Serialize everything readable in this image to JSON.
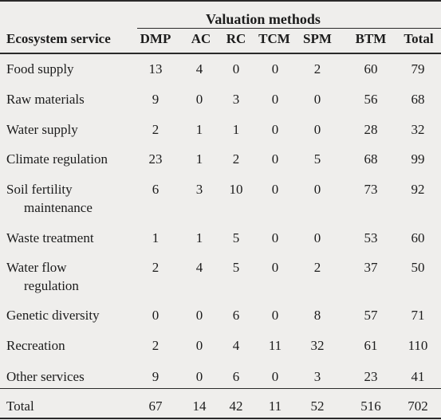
{
  "table": {
    "group_header": "Valuation methods",
    "column_headers": [
      "Ecosystem service",
      "DMP",
      "AC",
      "RC",
      "TCM",
      "SPM",
      "BTM",
      "Total"
    ],
    "rows": [
      {
        "service": [
          "Food supply"
        ],
        "values": [
          "13",
          "4",
          "0",
          "0",
          "2",
          "60",
          "79"
        ]
      },
      {
        "service": [
          "Raw materials"
        ],
        "values": [
          "9",
          "0",
          "3",
          "0",
          "0",
          "56",
          "68"
        ]
      },
      {
        "service": [
          "Water supply"
        ],
        "values": [
          "2",
          "1",
          "1",
          "0",
          "0",
          "28",
          "32"
        ]
      },
      {
        "service": [
          "Climate regulation"
        ],
        "values": [
          "23",
          "1",
          "2",
          "0",
          "5",
          "68",
          "99"
        ]
      },
      {
        "service": [
          "Soil fertility",
          "maintenance"
        ],
        "values": [
          "6",
          "3",
          "10",
          "0",
          "0",
          "73",
          "92"
        ]
      },
      {
        "service": [
          "Waste treatment"
        ],
        "values": [
          "1",
          "1",
          "5",
          "0",
          "0",
          "53",
          "60"
        ]
      },
      {
        "service": [
          "Water flow",
          "regulation"
        ],
        "values": [
          "2",
          "4",
          "5",
          "0",
          "2",
          "37",
          "50"
        ]
      },
      {
        "service": [
          "Genetic diversity"
        ],
        "values": [
          "0",
          "0",
          "6",
          "0",
          "8",
          "57",
          "71"
        ]
      },
      {
        "service": [
          "Recreation"
        ],
        "values": [
          "2",
          "0",
          "4",
          "11",
          "32",
          "61",
          "110"
        ]
      },
      {
        "service": [
          "Other services"
        ],
        "values": [
          "9",
          "0",
          "6",
          "0",
          "3",
          "23",
          "41"
        ]
      }
    ],
    "total_row": {
      "service": [
        "Total"
      ],
      "values": [
        "67",
        "14",
        "42",
        "11",
        "52",
        "516",
        "702"
      ]
    }
  }
}
